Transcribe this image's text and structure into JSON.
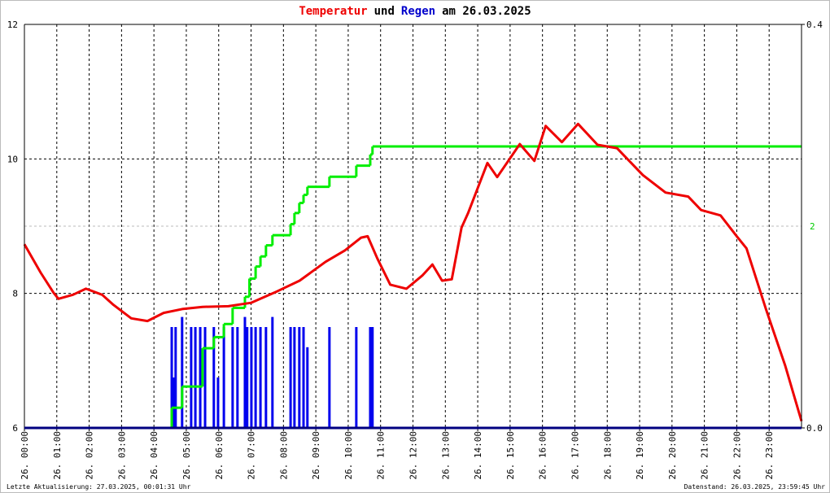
{
  "chart_data": {
    "type": "line",
    "title_parts": [
      {
        "text": "Temperatur",
        "color": "#ee0000"
      },
      {
        "text": "und",
        "color": "#000000"
      },
      {
        "text": "Regen",
        "color": "#0000cc"
      },
      {
        "text": "am 26.03.2025",
        "color": "#000000"
      }
    ],
    "xlim": [
      0,
      24
    ],
    "xticks": [
      {
        "value": 0,
        "label": "26. 00:00"
      },
      {
        "value": 1,
        "label": "26. 01:00"
      },
      {
        "value": 2,
        "label": "26. 02:00"
      },
      {
        "value": 3,
        "label": "26. 03:00"
      },
      {
        "value": 4,
        "label": "26. 04:00"
      },
      {
        "value": 5,
        "label": "26. 05:00"
      },
      {
        "value": 6,
        "label": "26. 06:00"
      },
      {
        "value": 7,
        "label": "26. 07:00"
      },
      {
        "value": 8,
        "label": "26. 08:00"
      },
      {
        "value": 9,
        "label": "26. 09:00"
      },
      {
        "value": 10,
        "label": "26. 10:00"
      },
      {
        "value": 11,
        "label": "26. 11:00"
      },
      {
        "value": 12,
        "label": "26. 12:00"
      },
      {
        "value": 13,
        "label": "26. 13:00"
      },
      {
        "value": 14,
        "label": "26. 14:00"
      },
      {
        "value": 15,
        "label": "26. 15:00"
      },
      {
        "value": 16,
        "label": "26. 16:00"
      },
      {
        "value": 17,
        "label": "26. 17:00"
      },
      {
        "value": 18,
        "label": "26. 18:00"
      },
      {
        "value": 19,
        "label": "26. 19:00"
      },
      {
        "value": 20,
        "label": "26. 20:00"
      },
      {
        "value": 21,
        "label": "26. 21:00"
      },
      {
        "value": 22,
        "label": "26. 22:00"
      },
      {
        "value": 23,
        "label": "26. 23:00"
      }
    ],
    "ylim": [
      6,
      12
    ],
    "yticks": [
      6,
      8,
      10,
      12
    ],
    "y2lim": [
      0,
      0.4
    ],
    "y2ticks": [
      {
        "value": 0,
        "label": "0.0"
      },
      0.4
    ],
    "y3lim": [
      0,
      4
    ],
    "y3ticks": [
      2
    ],
    "y3color": "#00cc00",
    "grid": true,
    "series": [
      {
        "type": "line",
        "color": "#ee0000",
        "x": [
          0,
          0.5,
          0.9,
          1.05,
          1.5,
          1.9,
          2.4,
          2.75,
          3.3,
          3.8,
          4.3,
          4.9,
          5.5,
          6.3,
          7.0,
          7.8,
          8.5,
          9.3,
          9.9,
          10.4,
          10.6,
          10.9,
          11.3,
          11.8,
          12.3,
          12.6,
          12.9,
          13.2,
          13.5,
          13.7,
          14.3,
          14.6,
          15.3,
          15.75,
          16.1,
          16.6,
          17.1,
          17.7,
          18.3,
          19.1,
          19.8,
          20.5,
          20.9,
          21.5,
          22.0,
          22.3,
          22.9,
          23.5,
          24.0
        ],
        "values": [
          8.73,
          8.31,
          8.01,
          7.92,
          7.98,
          8.07,
          7.98,
          7.83,
          7.63,
          7.59,
          7.71,
          7.77,
          7.8,
          7.81,
          7.86,
          8.03,
          8.19,
          8.47,
          8.64,
          8.83,
          8.85,
          8.52,
          8.13,
          8.07,
          8.27,
          8.43,
          8.19,
          8.21,
          8.98,
          9.19,
          9.94,
          9.73,
          10.22,
          9.97,
          10.49,
          10.25,
          10.52,
          10.21,
          10.16,
          9.76,
          9.5,
          9.44,
          9.24,
          9.16,
          8.85,
          8.67,
          7.77,
          6.92,
          6.1
        ]
      },
      {
        "type": "bar",
        "axis": "y2",
        "color": "#0000ee",
        "x": [
          4.55,
          4.62,
          4.67,
          4.87,
          5.15,
          5.28,
          5.43,
          5.58,
          5.85,
          5.98,
          6.16,
          6.43,
          6.58,
          6.81,
          6.88,
          7.01,
          7.14,
          7.29,
          7.46,
          7.66,
          8.22,
          8.34,
          8.49,
          8.62,
          8.74,
          9.42,
          10.25,
          10.68,
          10.75
        ],
        "values": [
          0.1,
          0.05,
          0.1,
          0.11,
          0.1,
          0.1,
          0.1,
          0.1,
          0.1,
          0.05,
          0.1,
          0.1,
          0.1,
          0.11,
          0.1,
          0.1,
          0.1,
          0.1,
          0.1,
          0.11,
          0.1,
          0.1,
          0.1,
          0.1,
          0.08,
          0.1,
          0.1,
          0.1,
          0.1
        ]
      },
      {
        "type": "step",
        "axis": "y3",
        "color": "#00ee00",
        "x": [
          0,
          4.55,
          4.87,
          5.5,
          5.85,
          6.16,
          6.43,
          6.81,
          6.95,
          7.14,
          7.29,
          7.46,
          7.66,
          8.22,
          8.34,
          8.49,
          8.62,
          8.74,
          9.42,
          10.25,
          10.68,
          10.75,
          24
        ],
        "values": [
          0,
          0.2,
          0.41,
          0.79,
          0.9,
          1.03,
          1.19,
          1.3,
          1.48,
          1.6,
          1.7,
          1.81,
          1.91,
          2.02,
          2.13,
          2.23,
          2.31,
          2.39,
          2.49,
          2.6,
          2.71,
          2.79,
          2.79
        ]
      }
    ],
    "footer_left": "Letzte Aktualisierung: 27.03.2025, 00:01:31 Uhr",
    "footer_right": "Datenstand: 26.03.2025, 23:59:45 Uhr"
  }
}
